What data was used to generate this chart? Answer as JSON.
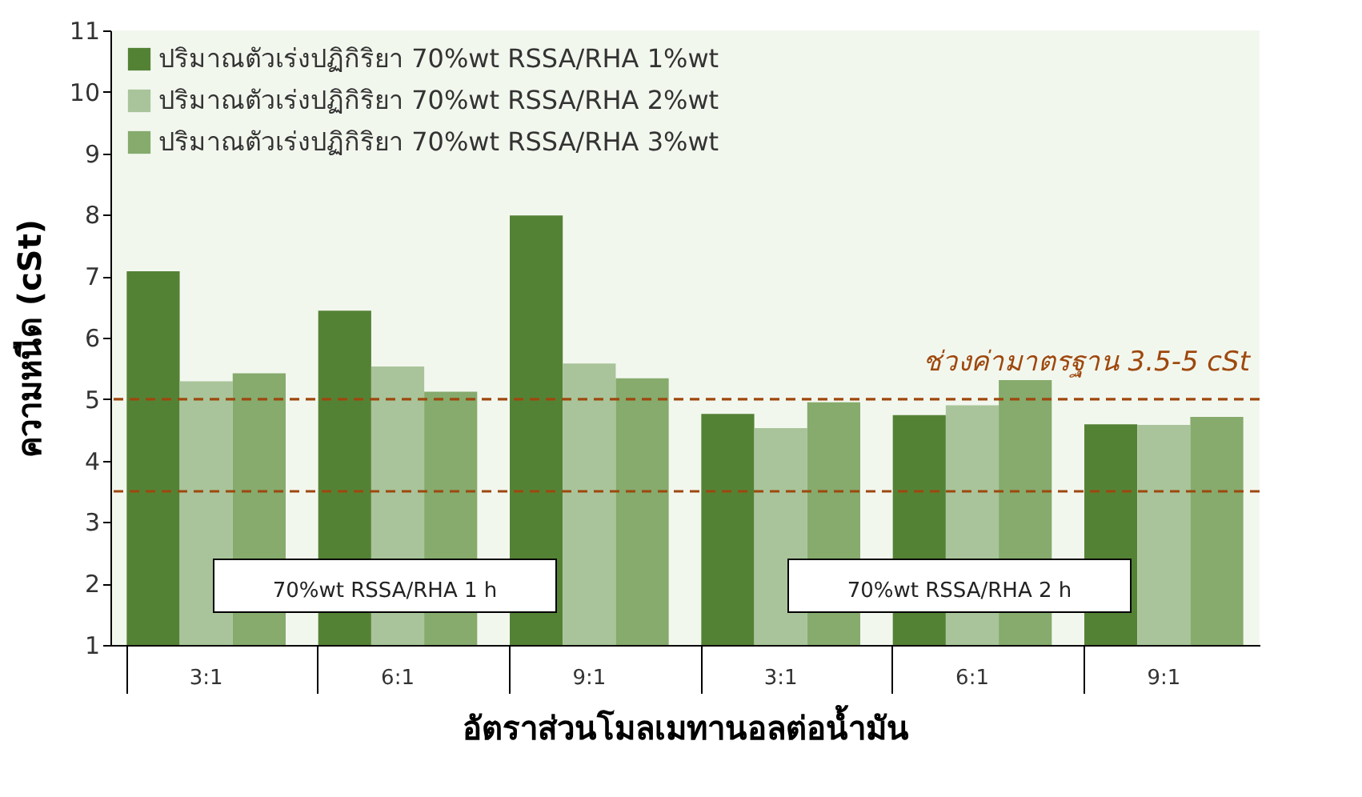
{
  "chart_data": {
    "type": "bar",
    "xlabel": "อัตราส่วนโมลเมทานอลต่อน้ำมัน",
    "ylabel": "ความหนืด (cSt)",
    "categories": [
      "3:1",
      "6:1",
      "9:1",
      "3:1",
      "6:1",
      "9:1"
    ],
    "series": [
      {
        "name": "ปริมาณตัวเร่งปฏิกิริยา 70%wt RSSA/RHA 1%wt",
        "color": "#548235",
        "values": [
          7.08,
          6.44,
          7.99,
          4.76,
          4.74,
          4.59
        ]
      },
      {
        "name": "ปริมาณตัวเร่งปฏิกิริยา 70%wt RSSA/RHA 2%wt",
        "color": "#a9c49a",
        "values": [
          5.29,
          5.53,
          5.58,
          4.53,
          4.9,
          4.58
        ]
      },
      {
        "name": "ปริมาณตัวเร่งปฏิกิริยา 70%wt RSSA/RHA 3%wt",
        "color": "#86ab6d",
        "values": [
          5.42,
          5.12,
          5.34,
          4.95,
          5.31,
          4.71
        ]
      }
    ],
    "ylim": [
      1,
      11
    ],
    "yticks": [
      1,
      2,
      3,
      4,
      5,
      6,
      7,
      8,
      9,
      10,
      11
    ],
    "ref_lines": [
      {
        "axis": "y",
        "value": 5,
        "label": "ช่วงค่ามาตรฐาน 3.5-5 cSt",
        "color": "#9e480e",
        "line_style": "dashed"
      },
      {
        "axis": "y",
        "value": 3.5,
        "color": "#9e480e",
        "line_style": "dashed"
      }
    ],
    "annotations": [
      "70%wt RSSA/RHA 1 h",
      "70%wt RSSA/RHA 2 h"
    ],
    "legend": "top left",
    "grid": false
  }
}
